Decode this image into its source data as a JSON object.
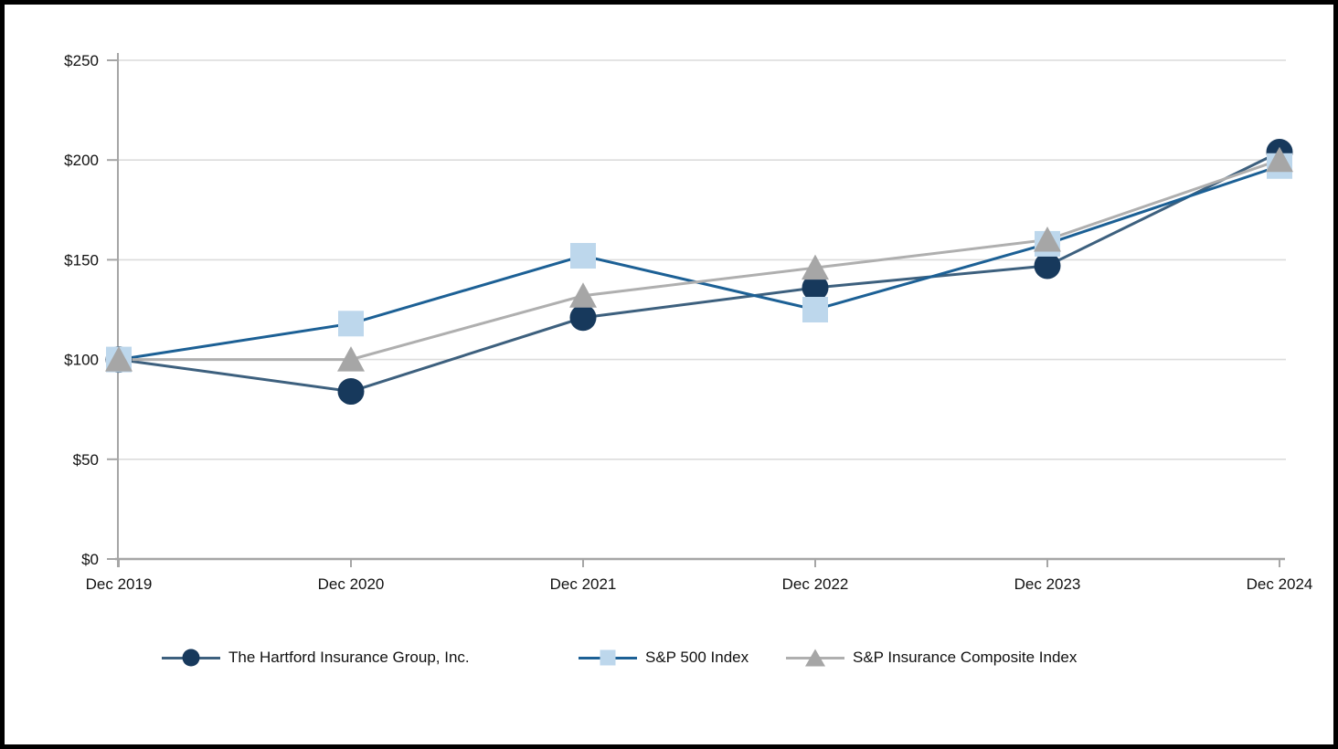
{
  "colors": {
    "background": "#FFFFFF",
    "frame_border": "#000000",
    "gridline": "#DCDCDC",
    "axis": "#A6A6A6",
    "tick_text": "#111111"
  },
  "chart_data": {
    "type": "line",
    "categories": [
      "Dec 2019",
      "Dec 2020",
      "Dec 2021",
      "Dec 2022",
      "Dec 2023",
      "Dec 2024"
    ],
    "yticks": [
      0,
      50,
      100,
      150,
      200,
      250
    ],
    "ytick_labels": [
      "$0",
      "$50",
      "$100",
      "$150",
      "$200",
      "$250"
    ],
    "ylim": [
      0,
      250
    ],
    "grid": true,
    "legend_position": "bottom",
    "series": [
      {
        "name": "The Hartford Insurance Group, Inc.",
        "marker": "circle",
        "line_color": "#3D607E",
        "marker_color": "#17395C",
        "values": [
          100,
          84,
          121,
          136,
          147,
          204
        ]
      },
      {
        "name": "S&P 500 Index",
        "marker": "square",
        "line_color": "#1C6095",
        "marker_color": "#BDD7EC",
        "values": [
          100,
          118,
          152,
          125,
          158,
          197
        ]
      },
      {
        "name": "S&P Insurance Composite Index",
        "marker": "triangle",
        "line_color": "#AFAFAF",
        "marker_color": "#A6A6A6",
        "values": [
          100,
          100,
          132,
          146,
          160,
          200
        ]
      }
    ]
  }
}
